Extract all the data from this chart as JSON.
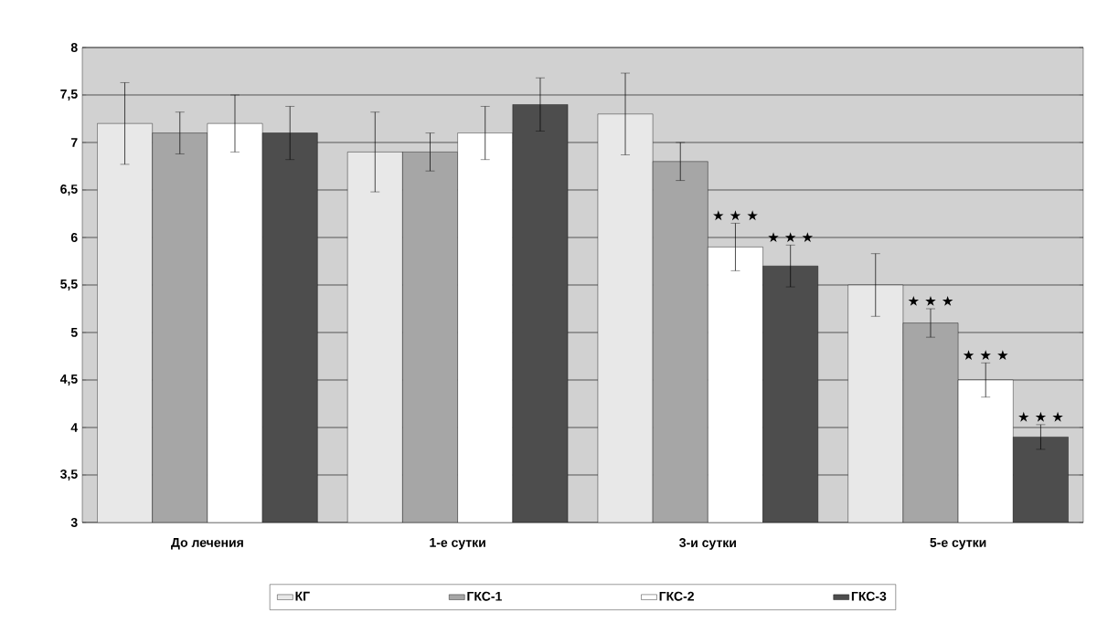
{
  "chart_data": {
    "type": "bar",
    "categories": [
      "До лечения",
      "1-е сутки",
      "3-и сутки",
      "5-е сутки"
    ],
    "series": [
      {
        "name": "КГ",
        "color": "#e8e8e8",
        "values": [
          7.2,
          6.9,
          7.3,
          5.5
        ],
        "errors": [
          0.43,
          0.42,
          0.43,
          0.33
        ]
      },
      {
        "name": "ГКС-1",
        "color": "#a6a6a6",
        "values": [
          7.1,
          6.9,
          6.8,
          5.1
        ],
        "errors": [
          0.22,
          0.2,
          0.2,
          0.15
        ]
      },
      {
        "name": "ГКС-2",
        "color": "#ffffff",
        "values": [
          7.2,
          7.1,
          5.9,
          4.5
        ],
        "errors": [
          0.3,
          0.28,
          0.25,
          0.18
        ]
      },
      {
        "name": "ГКС-3",
        "color": "#4d4d4d",
        "values": [
          7.1,
          7.4,
          5.7,
          3.9
        ],
        "errors": [
          0.28,
          0.28,
          0.22,
          0.13
        ]
      }
    ],
    "ylim": [
      3,
      8
    ],
    "yticks": [
      3,
      {
        "value": 3.5,
        "label": "3,5"
      },
      4,
      {
        "value": 4.5,
        "label": "4,5"
      },
      5,
      {
        "value": 5.5,
        "label": "5,5"
      },
      6,
      {
        "value": 6.5,
        "label": "6,5"
      },
      7,
      {
        "value": 7.5,
        "label": "7,5"
      },
      8
    ],
    "grid": "y",
    "legend": "bottom",
    "annotations": [
      {
        "text": "★ ★ ★",
        "y": 5.9
      },
      {
        "text": "★ ★ ★",
        "y": 5.7
      },
      {
        "text": "★ ★ ★",
        "y": 5.1
      },
      {
        "text": "★ ★ ★",
        "y": 4.5
      },
      {
        "text": "★ ★ ★",
        "y": 3.9
      }
    ]
  }
}
